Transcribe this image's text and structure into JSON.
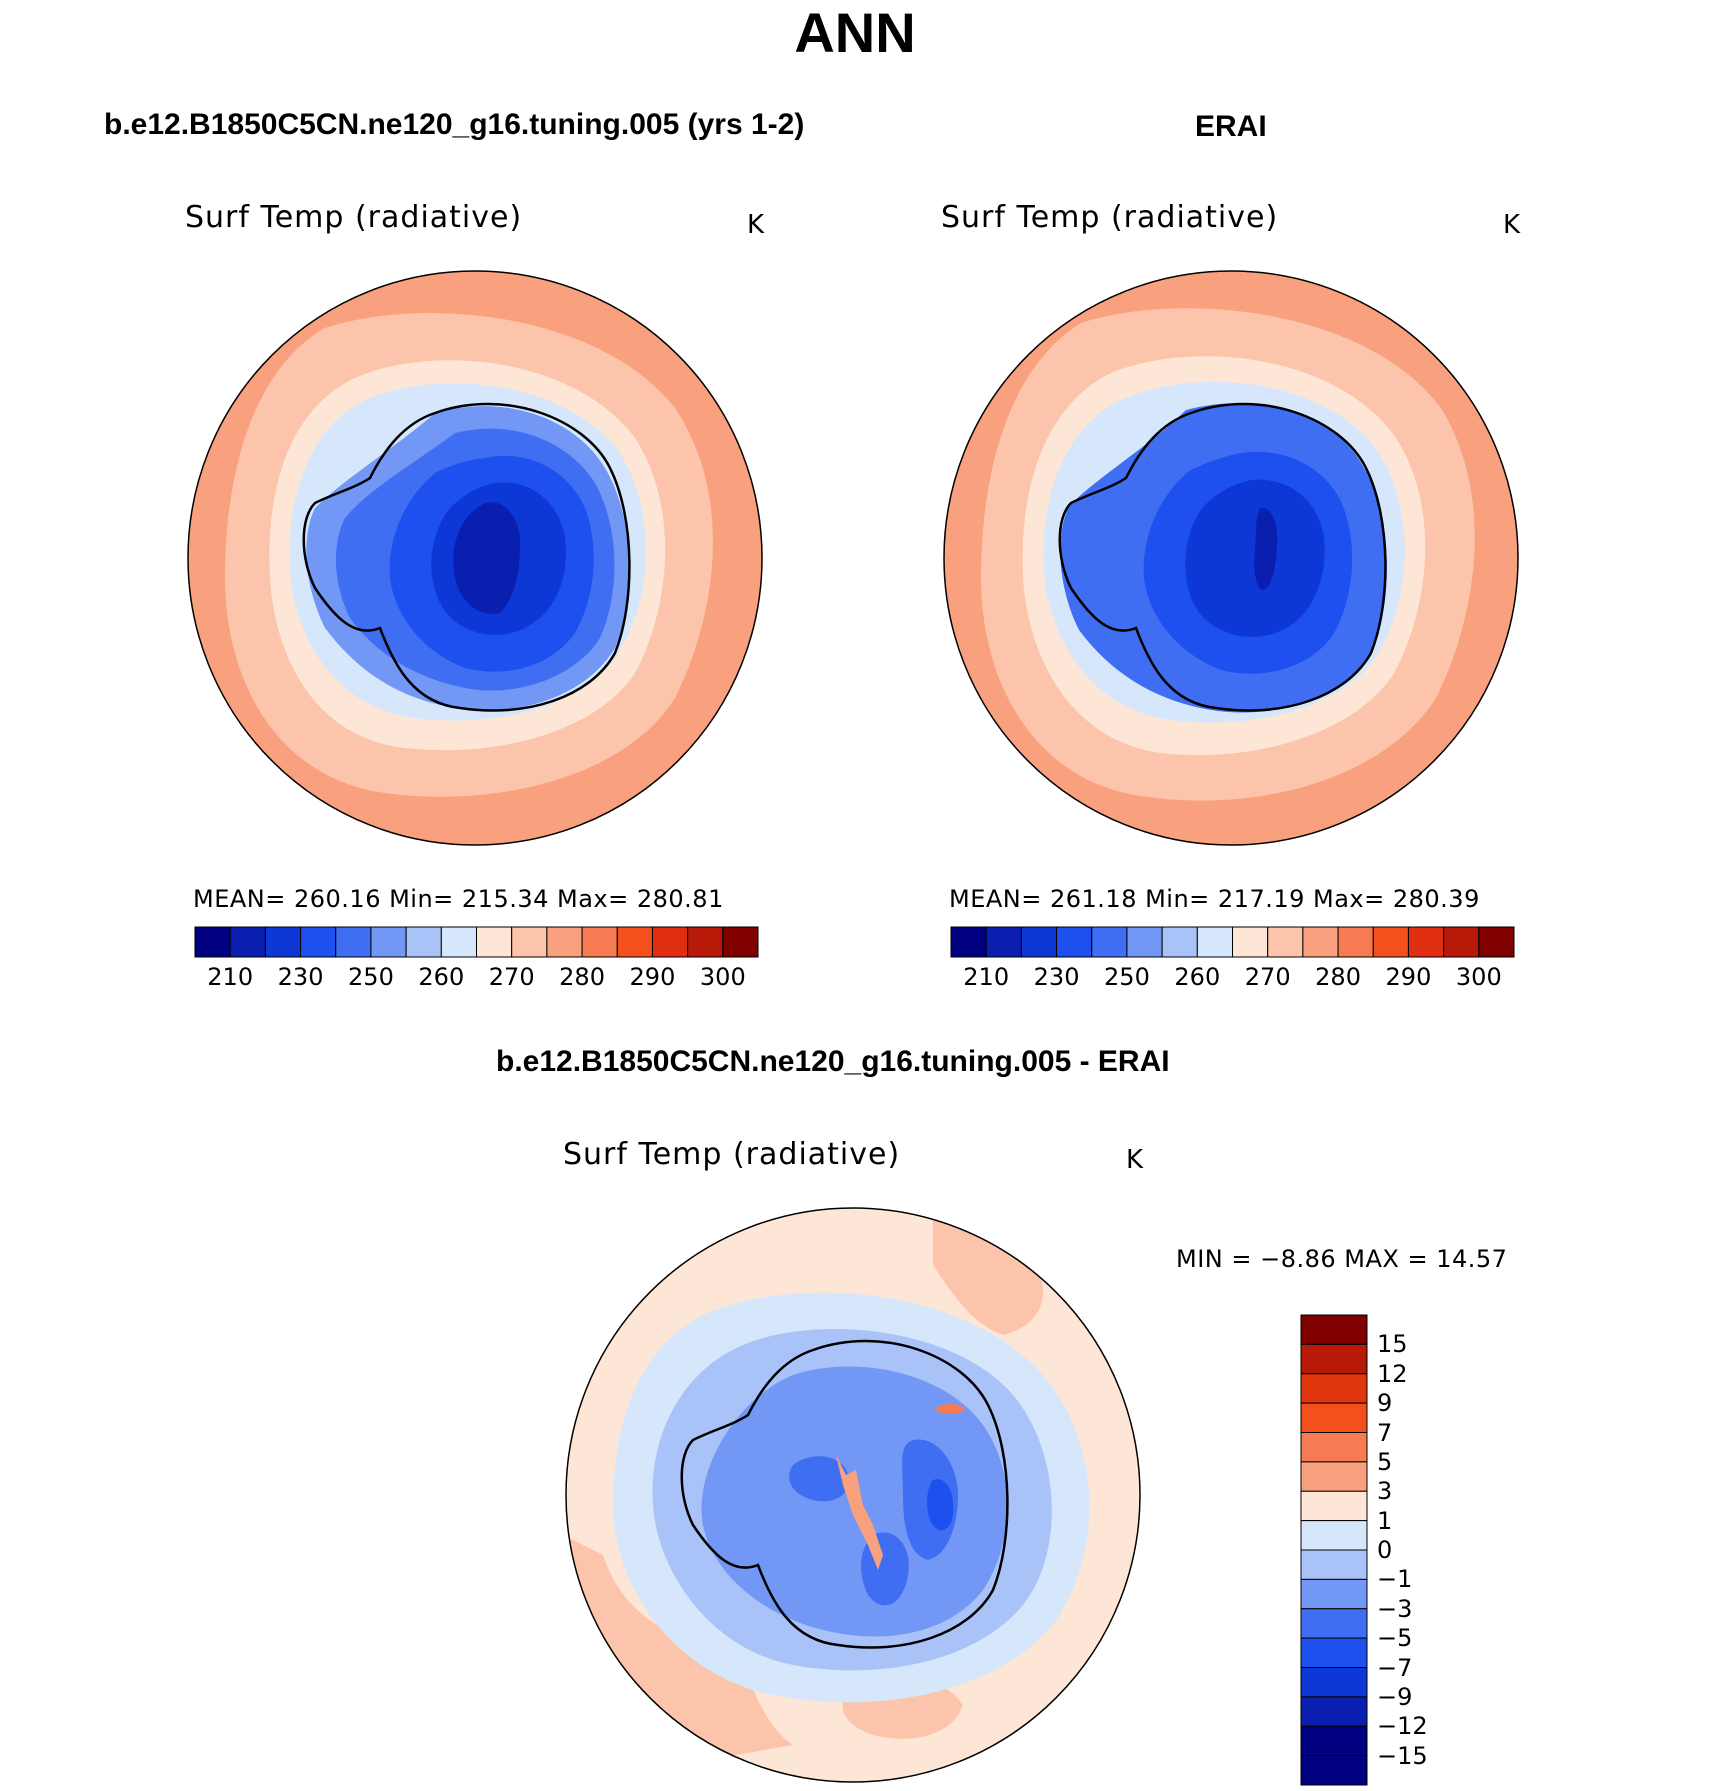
{
  "page": {
    "title": "ANN",
    "left_heading": "b.e12.B1850C5CN.ne120_g16.tuning.005 (yrs 1-2)",
    "right_heading": "ERAI",
    "diff_heading": "b.e12.B1850C5CN.ne120_g16.tuning.005 - ERAI"
  },
  "panels": [
    {
      "variable_title": "Surf Temp (radiative)",
      "units": "K",
      "stats": "MEAN=  260.16    Min=  215.34    Max=  280.81",
      "colorbar_ticks": [
        "210",
        "230",
        "250",
        "260",
        "270",
        "280",
        "290",
        "300"
      ]
    },
    {
      "variable_title": "Surf Temp (radiative)",
      "units": "K",
      "stats": "MEAN=  261.18    Min=  217.19    Max=  280.39",
      "colorbar_ticks": [
        "210",
        "230",
        "250",
        "260",
        "270",
        "280",
        "290",
        "300"
      ]
    },
    {
      "variable_title": "Surf Temp (radiative)",
      "units": "K",
      "stats": "MIN =   −8.86  MAX =    14.57",
      "colorbar_ticks": [
        "15",
        "12",
        "9",
        "7",
        "5",
        "3",
        "1",
        "0",
        "−1",
        "−3",
        "−5",
        "−7",
        "−9",
        "−12",
        "−15"
      ]
    }
  ],
  "colors": {
    "abs_scale": [
      "#000080",
      "#0a1fb0",
      "#0d38d6",
      "#1e50f0",
      "#3f6ef2",
      "#7297f5",
      "#a9c3f8",
      "#d6e7fc",
      "#fde6d6",
      "#fcc5ab",
      "#f9a07e",
      "#f77b52",
      "#f4501e",
      "#e02e10",
      "#b81a0a",
      "#800000"
    ],
    "diff_scale": [
      "#800000",
      "#b81a0a",
      "#e0360e",
      "#f4501e",
      "#f77b52",
      "#f9a07e",
      "#fde6d6",
      "#d6e7fc",
      "#a9c3f8",
      "#7297f5",
      "#3f6ef2",
      "#1e50f0",
      "#0d38d6",
      "#0a1fb0",
      "#000080"
    ],
    "coastline": "#000000"
  }
}
